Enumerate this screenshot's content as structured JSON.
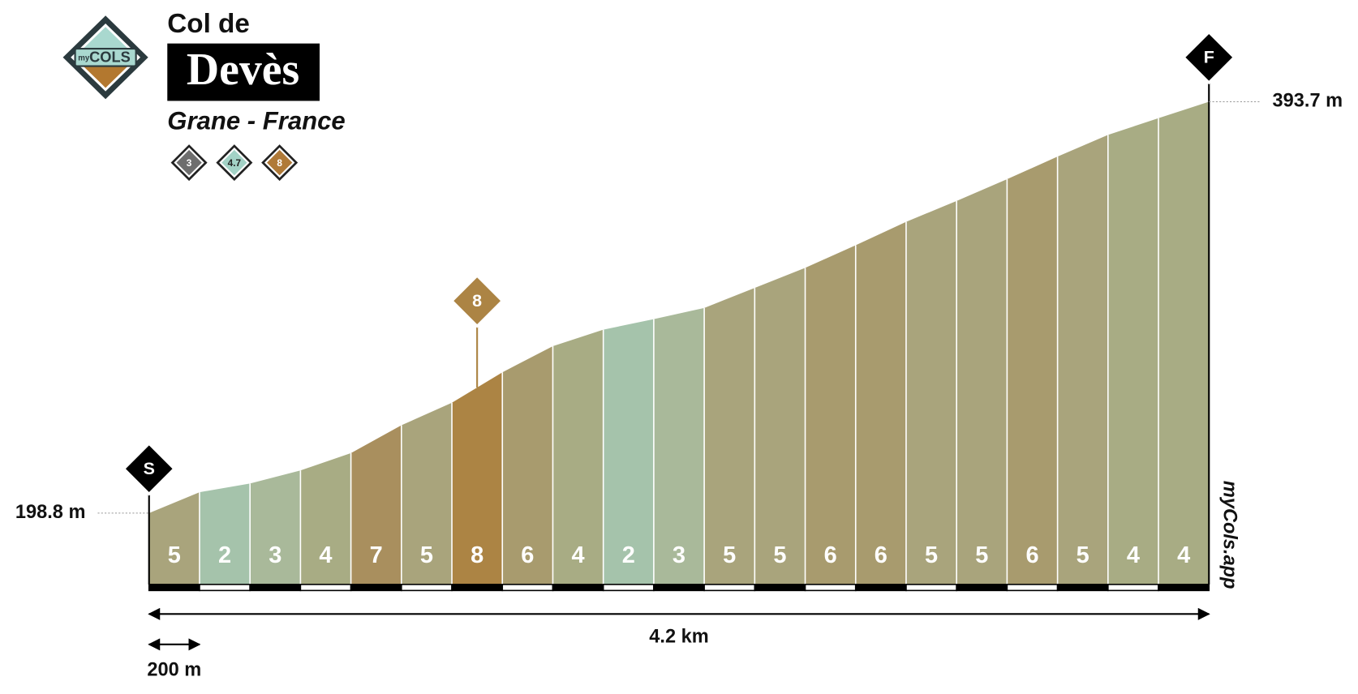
{
  "chart_data": {
    "type": "climb-profile",
    "title_prefix": "Col de",
    "title": "Devès",
    "subtitle": "Grane - France",
    "logo_small": "my",
    "logo_big": "COLS",
    "badges": [
      {
        "label": "3",
        "color": "#6e6e6e"
      },
      {
        "label": "4.7",
        "color": "#a3d2c6"
      },
      {
        "label": "8",
        "color": "#b07a38"
      }
    ],
    "x": [
      0,
      0.2,
      0.4,
      0.6,
      0.8,
      1.0,
      1.2,
      1.4,
      1.6,
      1.8,
      2.0,
      2.2,
      2.4,
      2.6,
      2.8,
      3.0,
      3.2,
      3.4,
      3.6,
      3.8,
      4.0,
      4.2
    ],
    "xlim": [
      0,
      4.2
    ],
    "elevations": [
      198.8,
      208.7,
      212.8,
      219.0,
      227.2,
      240.4,
      251.1,
      265.5,
      277.9,
      285.7,
      290.7,
      296.0,
      305.5,
      315.0,
      325.7,
      336.8,
      346.7,
      357.0,
      367.7,
      378.0,
      385.9,
      393.7
    ],
    "ylim": [
      165,
      400
    ],
    "gradients": [
      5,
      2,
      3,
      4,
      7,
      5,
      8,
      6,
      4,
      2,
      3,
      5,
      5,
      6,
      6,
      5,
      5,
      6,
      5,
      4,
      4
    ],
    "colors": [
      "#a9a47c",
      "#a5c3ab",
      "#a9b99a",
      "#a8ac84",
      "#a98f5e",
      "#a9a47c",
      "#ac8444",
      "#a89b6e",
      "#a8ac84",
      "#a5c3ab",
      "#a9b99a",
      "#a9a47c",
      "#a9a47c",
      "#a89b6e",
      "#a89b6e",
      "#a9a47c",
      "#a9a47c",
      "#a89b6e",
      "#a9a47c",
      "#a8ac84",
      "#a8ac84"
    ],
    "start_label": "S",
    "finish_label": "F",
    "start_elevation_label": "198.8 m",
    "end_elevation_label": "393.7 m",
    "max_marker": {
      "label": "8",
      "x": 1.3,
      "color": "#ac8444"
    },
    "distance_label": "4.2 km",
    "scale_label": "200 m",
    "scale_length": 0.2,
    "watermark": "myCols.app"
  }
}
